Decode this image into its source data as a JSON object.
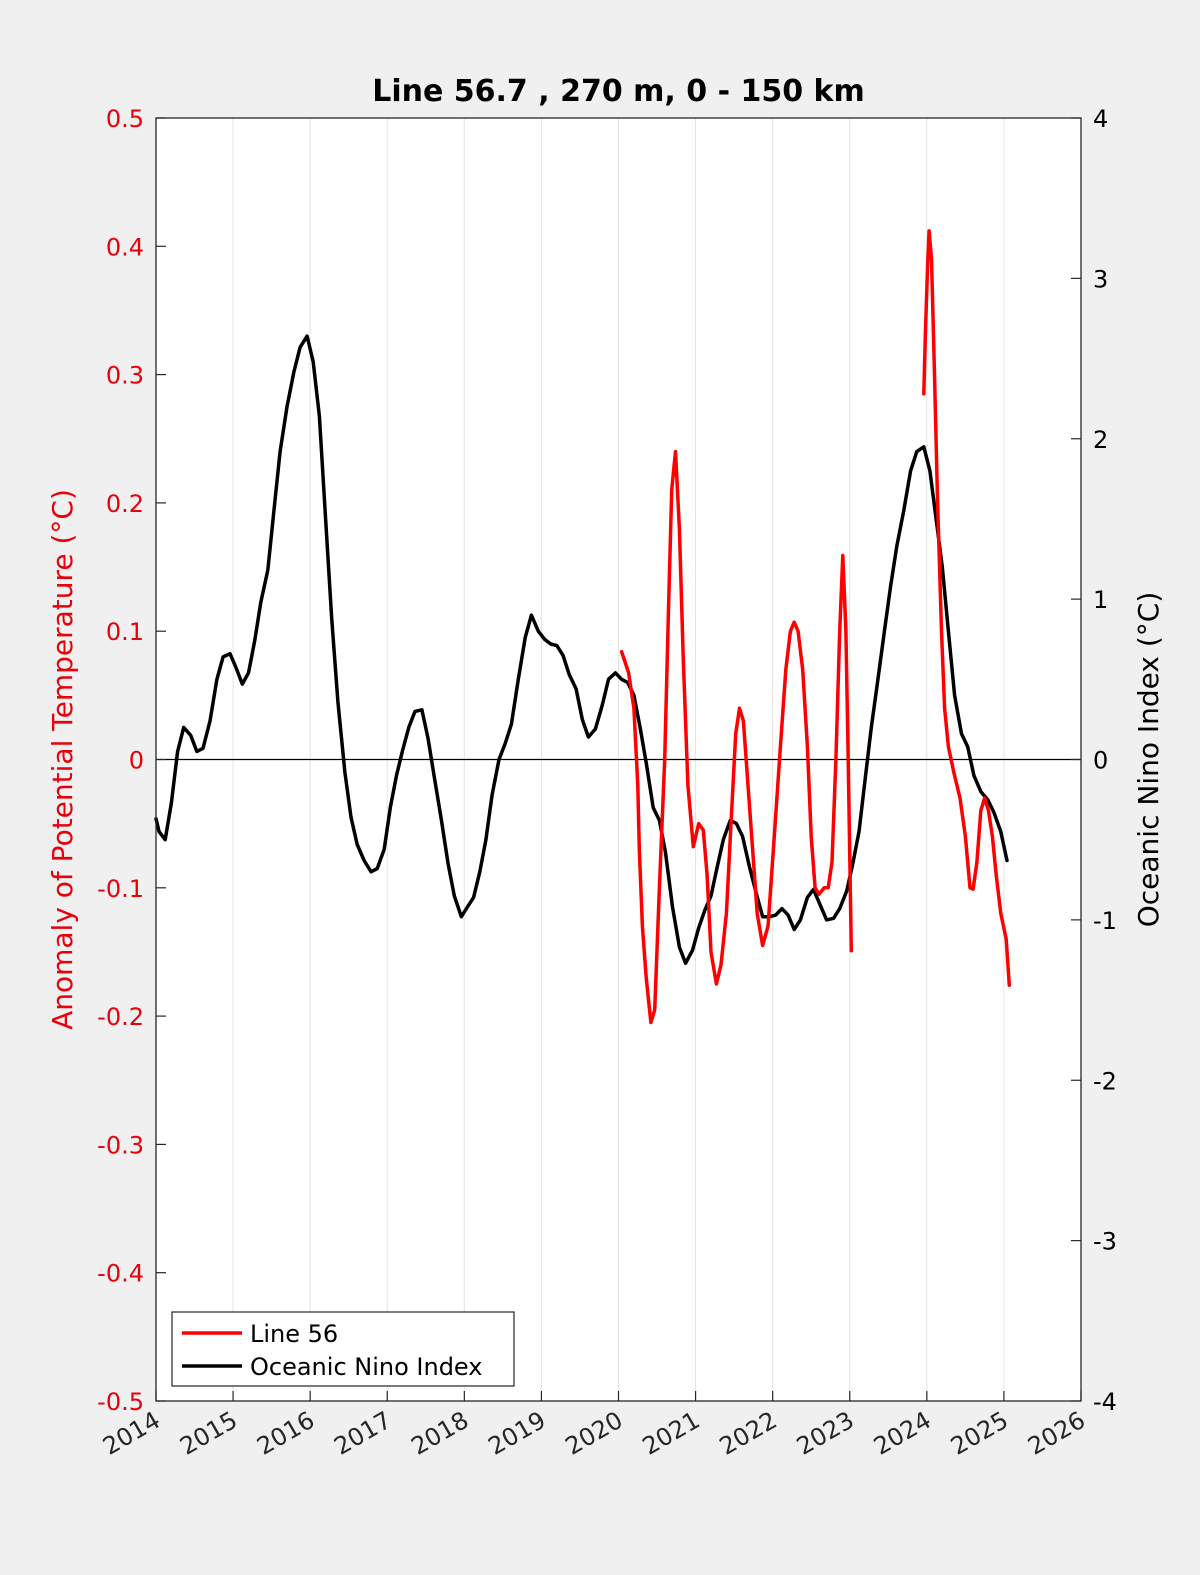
{
  "chart_data": {
    "type": "line",
    "title": "Line 56.7 , 270 m, 0 - 150 km",
    "ylabel": "Anomaly of Potential Temperature (°C)",
    "y2label": "Oceanic Nino Index (°C)",
    "xlim": [
      2014,
      2026
    ],
    "ylim": [
      -0.5,
      0.5
    ],
    "y2lim": [
      -4,
      4
    ],
    "x_ticks": [
      "2014",
      "2015",
      "2016",
      "2017",
      "2018",
      "2019",
      "2020",
      "2021",
      "2022",
      "2023",
      "2024",
      "2025",
      "2026"
    ],
    "y_ticks": [
      "-0.5",
      "-0.4",
      "-0.3",
      "-0.2",
      "-0.1",
      "0",
      "0.1",
      "0.2",
      "0.3",
      "0.4",
      "0.5"
    ],
    "y2_ticks": [
      "-4",
      "-3",
      "-2",
      "-1",
      "0",
      "1",
      "2",
      "3",
      "4"
    ],
    "grid": "vertical lines only",
    "legend_position": "bottom-left",
    "series": [
      {
        "name": "Line 56",
        "axis": "left",
        "color": "#ff0000",
        "segments": [
          [
            [
              2020.04,
              0.084
            ],
            [
              2020.13,
              0.068
            ],
            [
              2020.2,
              0.04
            ],
            [
              2020.25,
              -0.02
            ],
            [
              2020.27,
              -0.07
            ],
            [
              2020.31,
              -0.13
            ],
            [
              2020.36,
              -0.17
            ],
            [
              2020.42,
              -0.205
            ],
            [
              2020.47,
              -0.195
            ],
            [
              2020.53,
              -0.1
            ],
            [
              2020.6,
              0.0
            ],
            [
              2020.65,
              0.12
            ],
            [
              2020.69,
              0.21
            ],
            [
              2020.74,
              0.24
            ],
            [
              2020.79,
              0.18
            ],
            [
              2020.84,
              0.08
            ],
            [
              2020.9,
              -0.02
            ],
            [
              2020.97,
              -0.068
            ],
            [
              2021.04,
              -0.05
            ],
            [
              2021.1,
              -0.055
            ],
            [
              2021.15,
              -0.09
            ],
            [
              2021.2,
              -0.15
            ],
            [
              2021.27,
              -0.175
            ],
            [
              2021.33,
              -0.16
            ],
            [
              2021.4,
              -0.12
            ],
            [
              2021.46,
              -0.05
            ],
            [
              2021.52,
              0.02
            ],
            [
              2021.57,
              0.04
            ],
            [
              2021.62,
              0.03
            ],
            [
              2021.68,
              -0.02
            ],
            [
              2021.74,
              -0.07
            ],
            [
              2021.8,
              -0.12
            ],
            [
              2021.87,
              -0.145
            ],
            [
              2021.94,
              -0.13
            ],
            [
              2022.01,
              -0.07
            ],
            [
              2022.1,
              0.01
            ],
            [
              2022.17,
              0.07
            ],
            [
              2022.23,
              0.1
            ],
            [
              2022.28,
              0.107
            ],
            [
              2022.33,
              0.1
            ],
            [
              2022.39,
              0.07
            ],
            [
              2022.45,
              0.01
            ],
            [
              2022.5,
              -0.06
            ],
            [
              2022.55,
              -0.1
            ],
            [
              2022.6,
              -0.105
            ],
            [
              2022.67,
              -0.1
            ],
            [
              2022.72,
              -0.1
            ],
            [
              2022.77,
              -0.08
            ],
            [
              2022.82,
              0.0
            ],
            [
              2022.87,
              0.1
            ],
            [
              2022.91,
              0.159
            ],
            [
              2022.95,
              0.1
            ],
            [
              2022.98,
              0.0
            ],
            [
              2023.02,
              -0.149
            ]
          ],
          [
            [
              2023.96,
              0.285
            ],
            [
              2023.98,
              0.33
            ],
            [
              2024.01,
              0.385
            ],
            [
              2024.03,
              0.412
            ],
            [
              2024.06,
              0.39
            ],
            [
              2024.1,
              0.3
            ],
            [
              2024.14,
              0.2
            ],
            [
              2024.19,
              0.1
            ],
            [
              2024.23,
              0.04
            ],
            [
              2024.28,
              0.01
            ],
            [
              2024.35,
              -0.01
            ],
            [
              2024.43,
              -0.03
            ],
            [
              2024.5,
              -0.06
            ],
            [
              2024.56,
              -0.1
            ],
            [
              2024.6,
              -0.101
            ],
            [
              2024.65,
              -0.08
            ],
            [
              2024.7,
              -0.04
            ],
            [
              2024.75,
              -0.03
            ],
            [
              2024.8,
              -0.04
            ],
            [
              2024.85,
              -0.06
            ],
            [
              2024.9,
              -0.09
            ],
            [
              2024.96,
              -0.12
            ],
            [
              2025.03,
              -0.14
            ],
            [
              2025.07,
              -0.176
            ]
          ]
        ]
      },
      {
        "name": "Oceanic Nino Index",
        "axis": "right",
        "color": "#000000",
        "points": [
          [
            2014.0,
            -0.37
          ],
          [
            2014.04,
            -0.45
          ],
          [
            2014.12,
            -0.5
          ],
          [
            2014.2,
            -0.27
          ],
          [
            2014.28,
            0.05
          ],
          [
            2014.36,
            0.2
          ],
          [
            2014.45,
            0.15
          ],
          [
            2014.53,
            0.05
          ],
          [
            2014.61,
            0.07
          ],
          [
            2014.7,
            0.24
          ],
          [
            2014.79,
            0.5
          ],
          [
            2014.87,
            0.64
          ],
          [
            2014.96,
            0.66
          ],
          [
            2015.04,
            0.57
          ],
          [
            2015.12,
            0.47
          ],
          [
            2015.2,
            0.54
          ],
          [
            2015.28,
            0.74
          ],
          [
            2015.36,
            0.98
          ],
          [
            2015.45,
            1.18
          ],
          [
            2015.53,
            1.55
          ],
          [
            2015.61,
            1.92
          ],
          [
            2015.7,
            2.2
          ],
          [
            2015.79,
            2.42
          ],
          [
            2015.87,
            2.57
          ],
          [
            2015.96,
            2.64
          ],
          [
            2016.04,
            2.48
          ],
          [
            2016.12,
            2.14
          ],
          [
            2016.2,
            1.5
          ],
          [
            2016.28,
            0.88
          ],
          [
            2016.36,
            0.36
          ],
          [
            2016.45,
            -0.08
          ],
          [
            2016.53,
            -0.36
          ],
          [
            2016.61,
            -0.53
          ],
          [
            2016.7,
            -0.63
          ],
          [
            2016.79,
            -0.7
          ],
          [
            2016.87,
            -0.68
          ],
          [
            2016.96,
            -0.56
          ],
          [
            2017.04,
            -0.3
          ],
          [
            2017.12,
            -0.1
          ],
          [
            2017.2,
            0.06
          ],
          [
            2017.28,
            0.2
          ],
          [
            2017.36,
            0.3
          ],
          [
            2017.45,
            0.31
          ],
          [
            2017.53,
            0.13
          ],
          [
            2017.61,
            -0.11
          ],
          [
            2017.7,
            -0.37
          ],
          [
            2017.79,
            -0.65
          ],
          [
            2017.87,
            -0.85
          ],
          [
            2017.96,
            -0.98
          ],
          [
            2018.04,
            -0.92
          ],
          [
            2018.12,
            -0.86
          ],
          [
            2018.2,
            -0.7
          ],
          [
            2018.28,
            -0.5
          ],
          [
            2018.36,
            -0.22
          ],
          [
            2018.45,
            0.0
          ],
          [
            2018.53,
            0.1
          ],
          [
            2018.61,
            0.22
          ],
          [
            2018.7,
            0.5
          ],
          [
            2018.79,
            0.76
          ],
          [
            2018.87,
            0.9
          ],
          [
            2018.96,
            0.8
          ],
          [
            2019.04,
            0.75
          ],
          [
            2019.12,
            0.72
          ],
          [
            2019.2,
            0.71
          ],
          [
            2019.28,
            0.65
          ],
          [
            2019.36,
            0.53
          ],
          [
            2019.45,
            0.44
          ],
          [
            2019.53,
            0.25
          ],
          [
            2019.61,
            0.14
          ],
          [
            2019.7,
            0.19
          ],
          [
            2019.79,
            0.34
          ],
          [
            2019.87,
            0.5
          ],
          [
            2019.96,
            0.54
          ],
          [
            2020.04,
            0.5
          ],
          [
            2020.12,
            0.48
          ],
          [
            2020.2,
            0.4
          ],
          [
            2020.28,
            0.2
          ],
          [
            2020.36,
            -0.02
          ],
          [
            2020.45,
            -0.3
          ],
          [
            2020.53,
            -0.38
          ],
          [
            2020.61,
            -0.58
          ],
          [
            2020.7,
            -0.92
          ],
          [
            2020.79,
            -1.17
          ],
          [
            2020.87,
            -1.27
          ],
          [
            2020.96,
            -1.19
          ],
          [
            2021.04,
            -1.05
          ],
          [
            2021.12,
            -0.94
          ],
          [
            2021.2,
            -0.85
          ],
          [
            2021.28,
            -0.67
          ],
          [
            2021.36,
            -0.5
          ],
          [
            2021.45,
            -0.38
          ],
          [
            2021.53,
            -0.4
          ],
          [
            2021.61,
            -0.48
          ],
          [
            2021.7,
            -0.67
          ],
          [
            2021.79,
            -0.84
          ],
          [
            2021.87,
            -0.98
          ],
          [
            2021.96,
            -0.98
          ],
          [
            2022.04,
            -0.97
          ],
          [
            2022.12,
            -0.93
          ],
          [
            2022.2,
            -0.97
          ],
          [
            2022.28,
            -1.06
          ],
          [
            2022.36,
            -1.0
          ],
          [
            2022.45,
            -0.86
          ],
          [
            2022.53,
            -0.81
          ],
          [
            2022.61,
            -0.9
          ],
          [
            2022.7,
            -1.0
          ],
          [
            2022.79,
            -0.99
          ],
          [
            2022.87,
            -0.93
          ],
          [
            2022.96,
            -0.82
          ],
          [
            2023.04,
            -0.65
          ],
          [
            2023.12,
            -0.45
          ],
          [
            2023.2,
            -0.12
          ],
          [
            2023.28,
            0.2
          ],
          [
            2023.36,
            0.48
          ],
          [
            2023.45,
            0.8
          ],
          [
            2023.53,
            1.08
          ],
          [
            2023.61,
            1.33
          ],
          [
            2023.7,
            1.55
          ],
          [
            2023.79,
            1.8
          ],
          [
            2023.87,
            1.92
          ],
          [
            2023.96,
            1.95
          ],
          [
            2024.04,
            1.8
          ],
          [
            2024.12,
            1.5
          ],
          [
            2024.2,
            1.2
          ],
          [
            2024.28,
            0.8
          ],
          [
            2024.36,
            0.4
          ],
          [
            2024.45,
            0.16
          ],
          [
            2024.53,
            0.08
          ],
          [
            2024.61,
            -0.1
          ],
          [
            2024.7,
            -0.2
          ],
          [
            2024.79,
            -0.25
          ],
          [
            2024.87,
            -0.33
          ],
          [
            2024.96,
            -0.45
          ],
          [
            2025.04,
            -0.63
          ]
        ]
      }
    ]
  }
}
